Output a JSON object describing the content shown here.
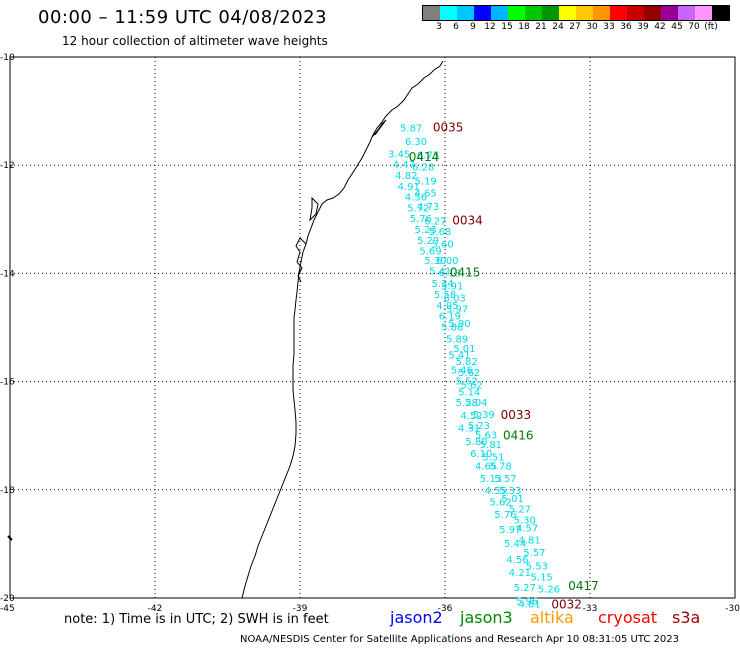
{
  "title": "00:00 – 11:59 UTC 04/08/2023",
  "subtitle": "12 hour collection of altimeter wave heights",
  "colorbar": {
    "colors": [
      "#808080",
      "#00ffff",
      "#00c8ff",
      "#0000ff",
      "#00b4ff",
      "#00ff00",
      "#00c800",
      "#009600",
      "#ffff00",
      "#ffc800",
      "#ff9600",
      "#ff0000",
      "#c80000",
      "#960000",
      "#960096",
      "#c864ff",
      "#ff96ff",
      "#000000"
    ],
    "labels": [
      "3",
      "6",
      "9",
      "12",
      "15",
      "18",
      "21",
      "24",
      "27",
      "30",
      "33",
      "36",
      "39",
      "42",
      "45",
      "70",
      "(ft)"
    ]
  },
  "map": {
    "lon_ticks": [
      "-45",
      "-42",
      "-39",
      "-36",
      "-33",
      "-30"
    ],
    "lat_ticks": [
      "-10",
      "-12",
      "-14",
      "-16",
      "-18",
      "-20"
    ]
  },
  "track": {
    "color": "#00d8e8",
    "points": [
      {
        "lat": -11.3,
        "lon": -36.7,
        "v": "5.87"
      },
      {
        "lat": -11.55,
        "lon": -36.6,
        "v": "6.30"
      },
      {
        "lat": -11.78,
        "lon": -36.95,
        "v": "3.45"
      },
      {
        "lat": -11.8,
        "lon": -36.35,
        "v": "6.75"
      },
      {
        "lat": -11.98,
        "lon": -36.85,
        "v": "4.47"
      },
      {
        "lat": -12.02,
        "lon": -36.45,
        "v": "6.28"
      },
      {
        "lat": -12.18,
        "lon": -36.8,
        "v": "4.82"
      },
      {
        "lat": -12.28,
        "lon": -36.4,
        "v": "5.19"
      },
      {
        "lat": -12.38,
        "lon": -36.75,
        "v": "4.91"
      },
      {
        "lat": -12.5,
        "lon": -36.4,
        "v": "4.65"
      },
      {
        "lat": -12.58,
        "lon": -36.6,
        "v": "4.56"
      },
      {
        "lat": -12.75,
        "lon": -36.35,
        "v": "4.73"
      },
      {
        "lat": -12.78,
        "lon": -36.55,
        "v": "5.72"
      },
      {
        "lat": -12.98,
        "lon": -36.5,
        "v": "5.76"
      },
      {
        "lat": -13.02,
        "lon": -36.2,
        "v": "6.27"
      },
      {
        "lat": -13.18,
        "lon": -36.4,
        "v": "5.23"
      },
      {
        "lat": -13.22,
        "lon": -36.1,
        "v": "5.68"
      },
      {
        "lat": -13.38,
        "lon": -36.35,
        "v": "5.29"
      },
      {
        "lat": -13.45,
        "lon": -36.05,
        "v": "5.60"
      },
      {
        "lat": -13.58,
        "lon": -36.3,
        "v": "5.69"
      },
      {
        "lat": -13.75,
        "lon": -36.2,
        "v": "5.30"
      },
      {
        "lat": -13.75,
        "lon": -35.95,
        "v": "6.00"
      },
      {
        "lat": -13.95,
        "lon": -36.1,
        "v": "5.41"
      },
      {
        "lat": -13.98,
        "lon": -35.9,
        "v": "6.13"
      },
      {
        "lat": -14.18,
        "lon": -36.05,
        "v": "5.34"
      },
      {
        "lat": -14.22,
        "lon": -35.85,
        "v": "5.91"
      },
      {
        "lat": -14.38,
        "lon": -36.0,
        "v": "5.58"
      },
      {
        "lat": -14.45,
        "lon": -35.8,
        "v": "6.03"
      },
      {
        "lat": -14.58,
        "lon": -35.95,
        "v": "4.95"
      },
      {
        "lat": -14.65,
        "lon": -35.75,
        "v": "5.97"
      },
      {
        "lat": -14.78,
        "lon": -35.9,
        "v": "6.19"
      },
      {
        "lat": -14.92,
        "lon": -35.7,
        "v": "5.90"
      },
      {
        "lat": -14.98,
        "lon": -35.85,
        "v": "5.86"
      },
      {
        "lat": -15.2,
        "lon": -35.75,
        "v": "5.89"
      },
      {
        "lat": -15.38,
        "lon": -35.6,
        "v": "5.01"
      },
      {
        "lat": -15.5,
        "lon": -35.7,
        "v": "5.41"
      },
      {
        "lat": -15.62,
        "lon": -35.55,
        "v": "5.82"
      },
      {
        "lat": -15.78,
        "lon": -35.65,
        "v": "5.46"
      },
      {
        "lat": -15.82,
        "lon": -35.5,
        "v": "5.62"
      },
      {
        "lat": -15.98,
        "lon": -35.55,
        "v": "5.52"
      },
      {
        "lat": -16.05,
        "lon": -35.45,
        "v": "5.62"
      },
      {
        "lat": -16.18,
        "lon": -35.5,
        "v": "5.14"
      },
      {
        "lat": -16.38,
        "lon": -35.55,
        "v": "5.28"
      },
      {
        "lat": -16.38,
        "lon": -35.35,
        "v": "5.04"
      },
      {
        "lat": -16.62,
        "lon": -35.45,
        "v": "4.52"
      },
      {
        "lat": -16.6,
        "lon": -35.2,
        "v": "5.39"
      },
      {
        "lat": -16.8,
        "lon": -35.3,
        "v": "5.23"
      },
      {
        "lat": -16.85,
        "lon": -35.5,
        "v": "4.31"
      },
      {
        "lat": -16.98,
        "lon": -35.15,
        "v": "5.63"
      },
      {
        "lat": -17.1,
        "lon": -35.35,
        "v": "5.80"
      },
      {
        "lat": -17.15,
        "lon": -35.05,
        "v": "5.81"
      },
      {
        "lat": -17.32,
        "lon": -35.25,
        "v": "6.10"
      },
      {
        "lat": -17.38,
        "lon": -35.0,
        "v": "5.51"
      },
      {
        "lat": -17.55,
        "lon": -35.15,
        "v": "4.65"
      },
      {
        "lat": -17.55,
        "lon": -34.85,
        "v": "5.78"
      },
      {
        "lat": -17.78,
        "lon": -35.05,
        "v": "5.13"
      },
      {
        "lat": -17.78,
        "lon": -34.75,
        "v": "5.57"
      },
      {
        "lat": -18.0,
        "lon": -34.95,
        "v": "4.55"
      },
      {
        "lat": -18.0,
        "lon": -34.65,
        "v": "5.33"
      },
      {
        "lat": -18.15,
        "lon": -34.6,
        "v": "5.01"
      },
      {
        "lat": -18.22,
        "lon": -34.85,
        "v": "5.62"
      },
      {
        "lat": -18.35,
        "lon": -34.45,
        "v": "5.27"
      },
      {
        "lat": -18.45,
        "lon": -34.75,
        "v": "5.76"
      },
      {
        "lat": -18.55,
        "lon": -34.35,
        "v": "5.30"
      },
      {
        "lat": -18.72,
        "lon": -34.65,
        "v": "5.97"
      },
      {
        "lat": -18.7,
        "lon": -34.3,
        "v": "4.57"
      },
      {
        "lat": -18.92,
        "lon": -34.25,
        "v": "4.81"
      },
      {
        "lat": -18.98,
        "lon": -34.55,
        "v": "5.44"
      },
      {
        "lat": -19.15,
        "lon": -34.15,
        "v": "5.57"
      },
      {
        "lat": -19.28,
        "lon": -34.5,
        "v": "4.56"
      },
      {
        "lat": -19.4,
        "lon": -34.1,
        "v": "5.53"
      },
      {
        "lat": -19.52,
        "lon": -34.45,
        "v": "4.21"
      },
      {
        "lat": -19.6,
        "lon": -34.0,
        "v": "5.15"
      },
      {
        "lat": -19.8,
        "lon": -34.35,
        "v": "5.27"
      },
      {
        "lat": -19.82,
        "lon": -33.85,
        "v": "5.26"
      },
      {
        "lat": -20.05,
        "lon": -34.3,
        "v": "5.96"
      },
      {
        "lat": -20.1,
        "lon": -34.25,
        "v": "4.81"
      }
    ]
  },
  "pass_labels": [
    {
      "lat": -11.3,
      "lon": -36.25,
      "text": "0035",
      "color": "#7a0000"
    },
    {
      "lat": -11.85,
      "lon": -36.75,
      "text": "0414",
      "color": "#007700"
    },
    {
      "lat": -13.02,
      "lon": -35.85,
      "text": "0034",
      "color": "#7a0000"
    },
    {
      "lat": -13.98,
      "lon": -35.9,
      "text": "0415",
      "color": "#007700"
    },
    {
      "lat": -16.62,
      "lon": -34.85,
      "text": "0033",
      "color": "#7a0000"
    },
    {
      "lat": -17.0,
      "lon": -34.8,
      "text": "0416",
      "color": "#007700"
    },
    {
      "lat": -19.78,
      "lon": -33.45,
      "text": "0417",
      "color": "#007700"
    },
    {
      "lat": -20.12,
      "lon": -33.8,
      "text": "0032",
      "color": "#7a0000"
    }
  ],
  "note": "note: 1) Time is in UTC; 2) SWH is in feet",
  "satellites": [
    {
      "name": "jason2",
      "color": "#0000ff",
      "left": 390
    },
    {
      "name": "jason3",
      "color": "#008800",
      "left": 460
    },
    {
      "name": "altika",
      "color": "#ff9900",
      "left": 530
    },
    {
      "name": "cryosat",
      "color": "#ff0000",
      "left": 598
    },
    {
      "name": "s3a",
      "color": "#9a0000",
      "left": 672
    }
  ],
  "footer": "NOAA/NESDIS Center for Satellite Applications and Research   Apr 10 08:31:05 UTC 2023"
}
